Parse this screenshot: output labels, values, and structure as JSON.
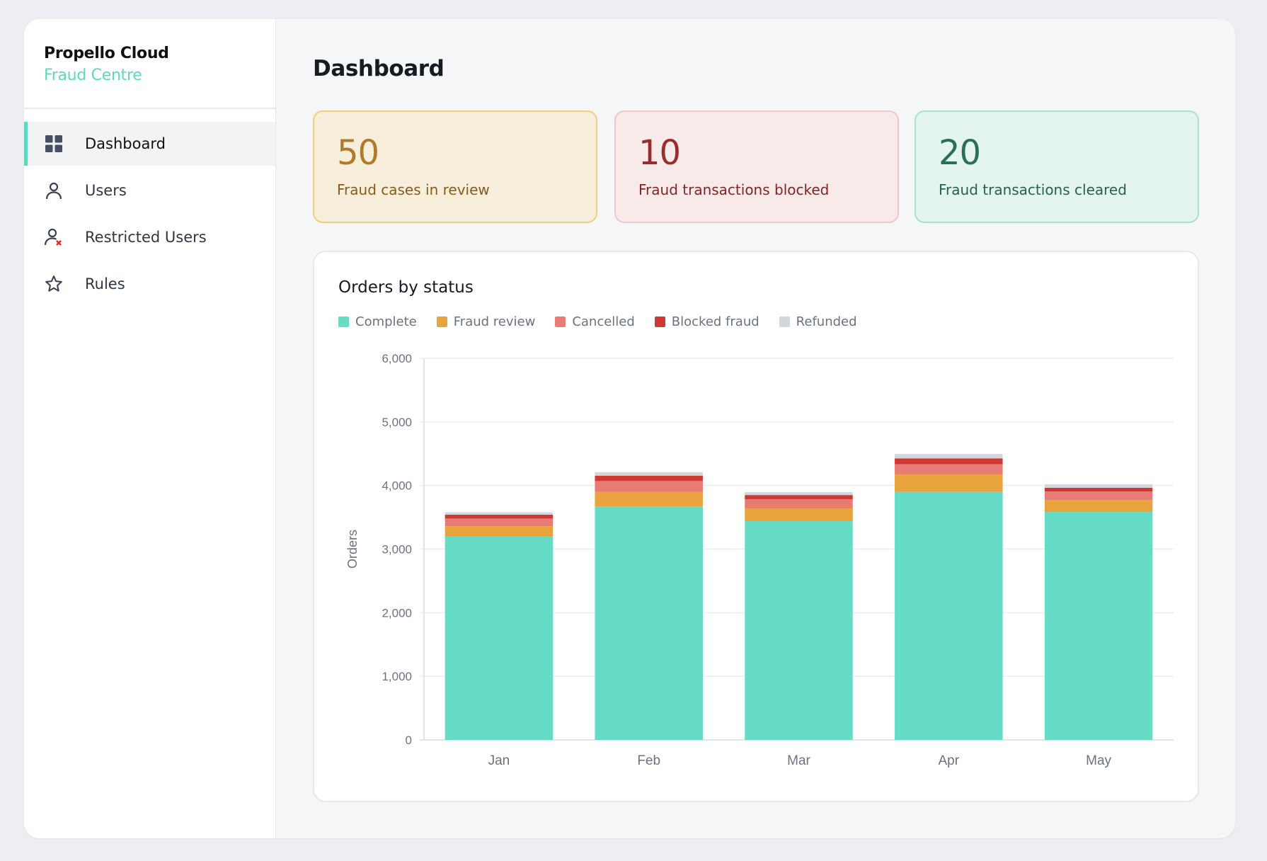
{
  "sidebar": {
    "brand": "Propello Cloud",
    "subtitle": "Fraud Centre",
    "items": [
      {
        "label": "Dashboard",
        "icon": "grid-icon",
        "active": true
      },
      {
        "label": "Users",
        "icon": "user-icon"
      },
      {
        "label": "Restricted Users",
        "icon": "user-restricted-icon"
      },
      {
        "label": "Rules",
        "icon": "star-icon"
      }
    ]
  },
  "header": {
    "title": "Dashboard"
  },
  "stats": [
    {
      "value": "50",
      "label": "Fraud cases in review"
    },
    {
      "value": "10",
      "label": "Fraud transactions blocked"
    },
    {
      "value": "20",
      "label": "Fraud transactions cleared"
    }
  ],
  "chart_data": {
    "type": "bar",
    "stacked": true,
    "title": "Orders by status",
    "xlabel": "",
    "ylabel": "Orders",
    "ylim": [
      0,
      6000
    ],
    "yticks": [
      0,
      1000,
      2000,
      3000,
      4000,
      5000,
      6000
    ],
    "ytick_labels": [
      "0",
      "1,000",
      "2,000",
      "3,000",
      "4,000",
      "5,000",
      "6,000"
    ],
    "grid": true,
    "legend_position": "top-left",
    "categories": [
      "Jan",
      "Feb",
      "Mar",
      "Apr",
      "May"
    ],
    "series": [
      {
        "name": "Complete",
        "color": "#66dbc5",
        "values": [
          3200,
          3670,
          3440,
          3900,
          3590
        ]
      },
      {
        "name": "Fraud review",
        "color": "#e8a33d",
        "values": [
          160,
          230,
          200,
          280,
          180
        ]
      },
      {
        "name": "Cancelled",
        "color": "#e87b74",
        "values": [
          120,
          170,
          145,
          155,
          135
        ]
      },
      {
        "name": "Blocked fraud",
        "color": "#cc3a33",
        "values": [
          60,
          85,
          65,
          90,
          60
        ]
      },
      {
        "name": "Refunded",
        "color": "#d3d6dd",
        "values": [
          40,
          55,
          45,
          70,
          55
        ]
      }
    ]
  }
}
